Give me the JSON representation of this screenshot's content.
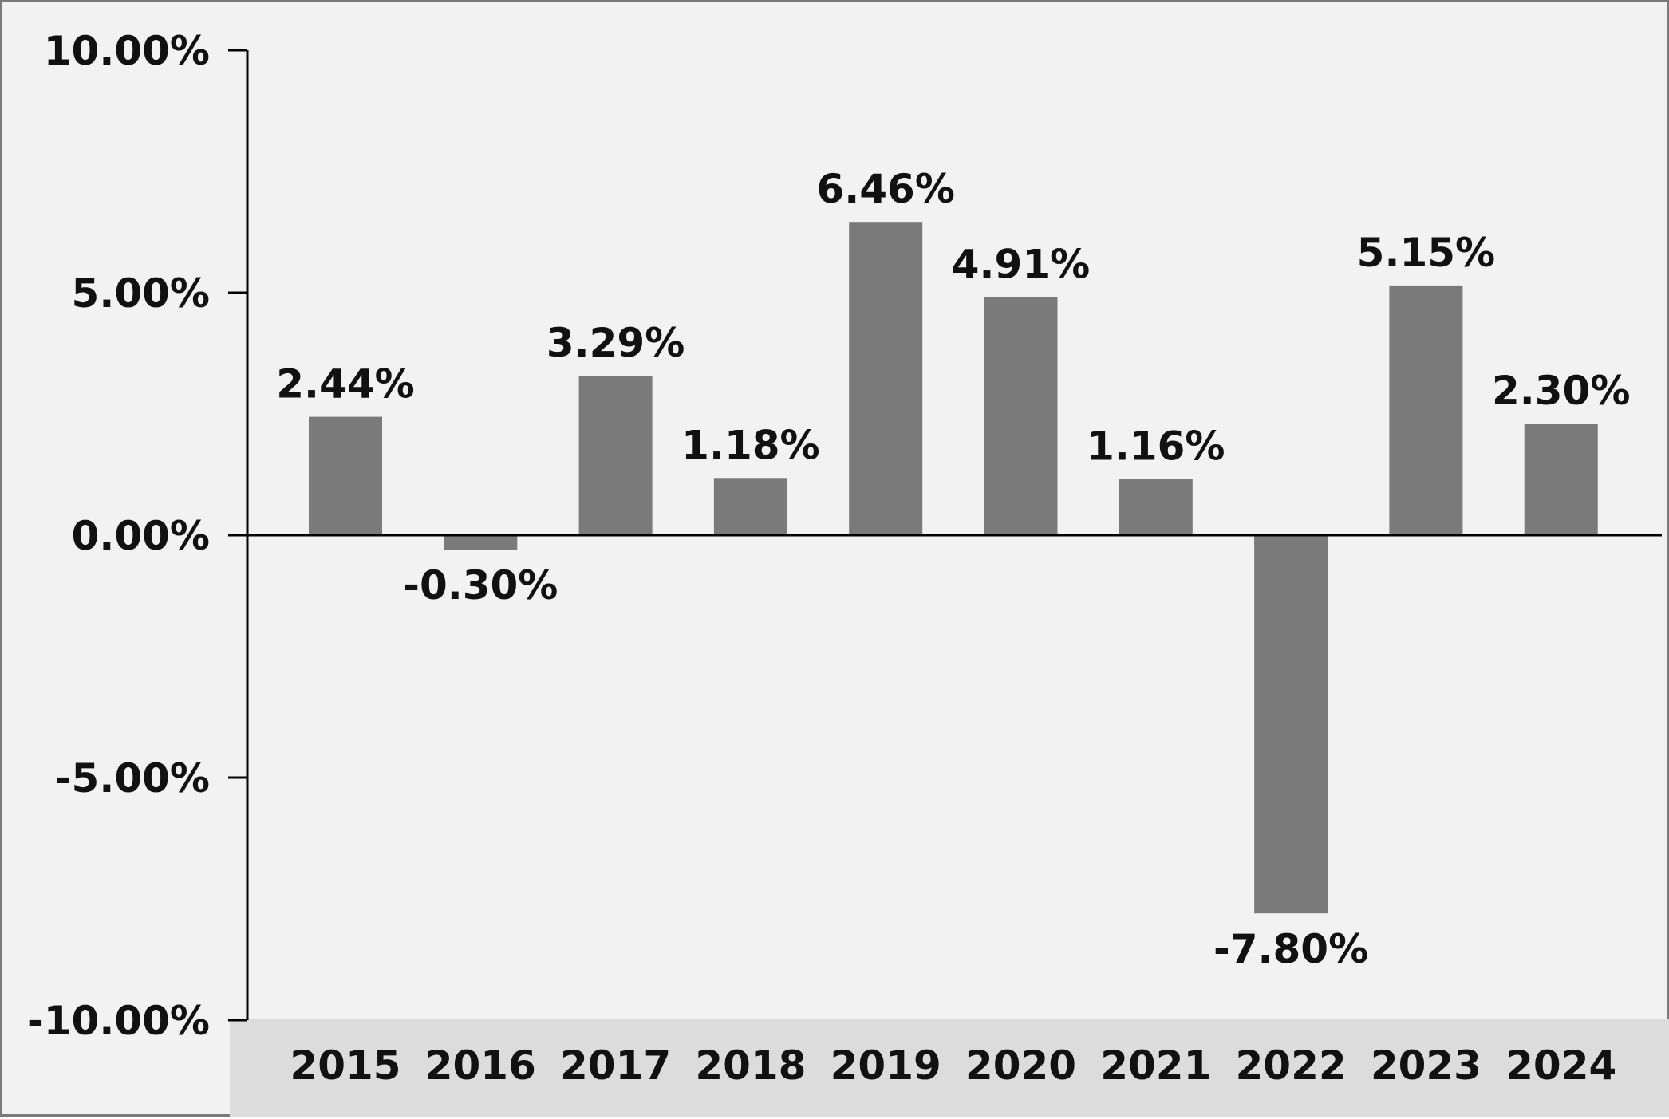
{
  "chart_data": {
    "type": "bar",
    "title": "",
    "xlabel": "",
    "ylabel": "",
    "categories": [
      "2015",
      "2016",
      "2017",
      "2018",
      "2019",
      "2020",
      "2021",
      "2022",
      "2023",
      "2024"
    ],
    "values": [
      2.44,
      -0.3,
      3.29,
      1.18,
      6.46,
      4.91,
      1.16,
      -7.8,
      5.15,
      2.3
    ],
    "data_labels": [
      "2.44%",
      "-0.30%",
      "3.29%",
      "1.18%",
      "6.46%",
      "4.91%",
      "1.16%",
      "-7.80%",
      "5.15%",
      "2.30%"
    ],
    "ylim": [
      -10,
      10
    ],
    "y_ticks": [
      10,
      5,
      0,
      -5,
      -10
    ],
    "y_tick_labels": [
      "10.00%",
      "5.00%",
      "0.00%",
      "-5.00%",
      "-10.00%"
    ],
    "grid": false,
    "legend": "none",
    "colors": {
      "bar": "#7a7a7a",
      "background": "#f1f2f1",
      "category_band": "#dcdcdd",
      "axis": "#000000",
      "border": "#7a7a7a"
    }
  }
}
